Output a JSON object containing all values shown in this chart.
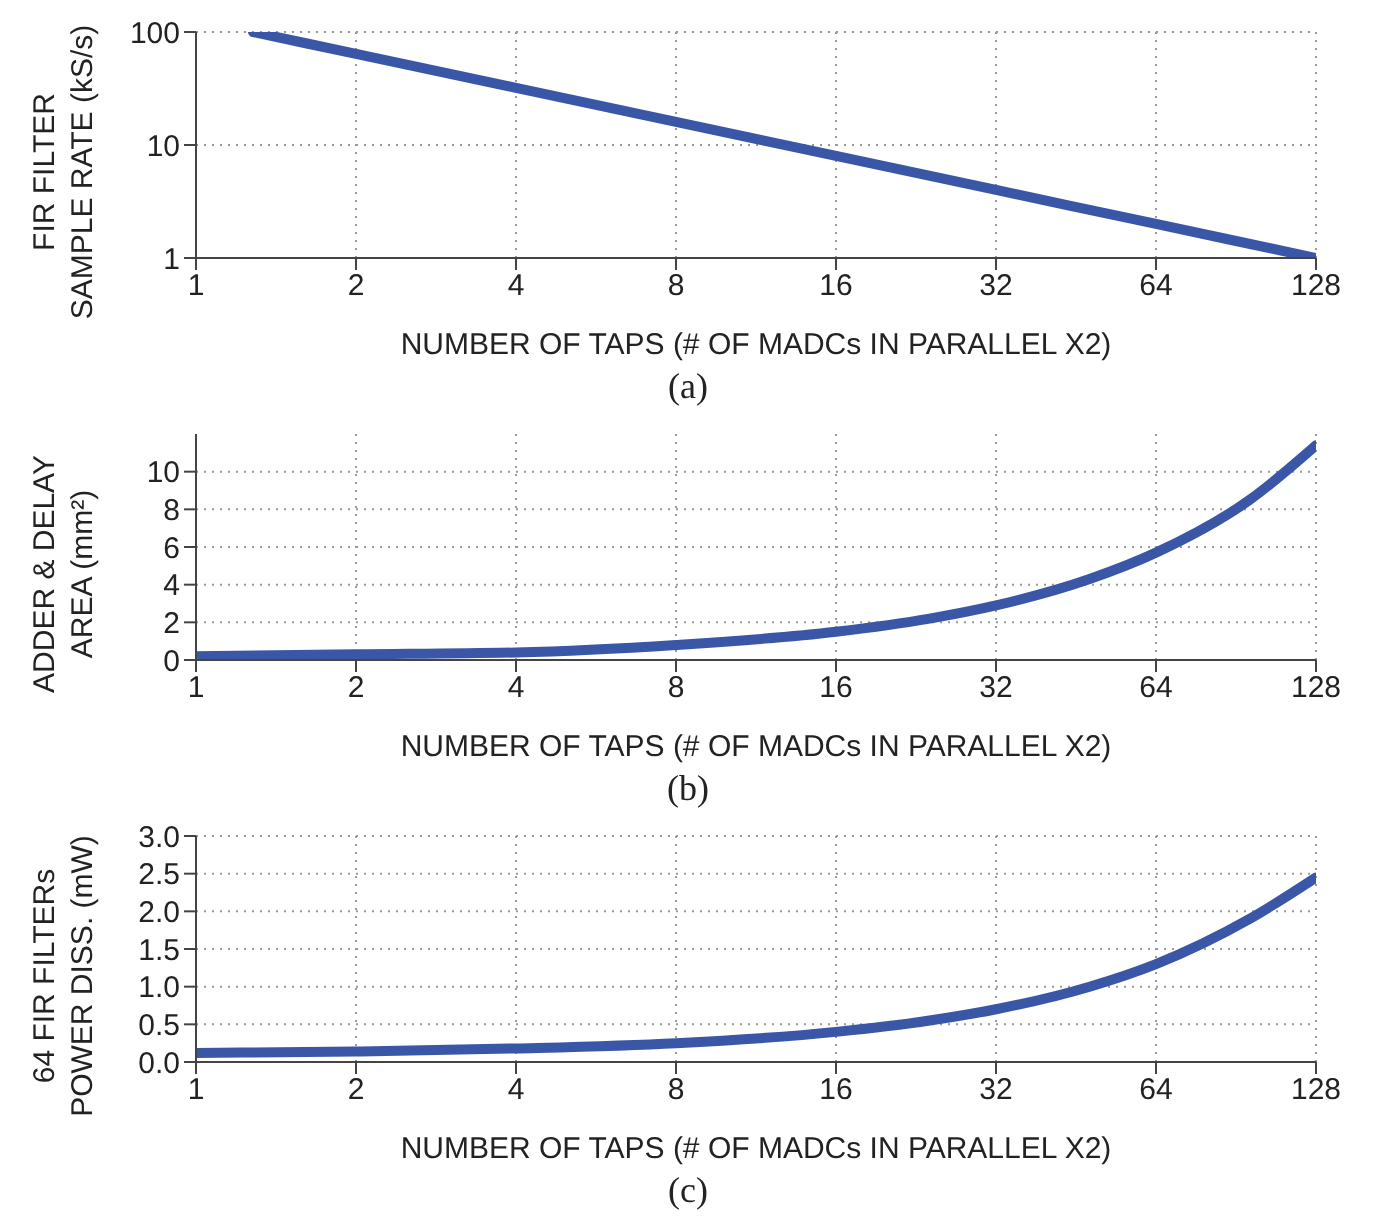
{
  "chart_data": [
    {
      "type": "line",
      "xlabel": "NUMBER OF TAPS (# OF MADCs IN PARALLEL X2)",
      "ylabel": "FIR FILTER\nSAMPLE RATE (kS/s)",
      "annotations": [
        "(a)"
      ],
      "log": "xy",
      "grid": true,
      "xlim": [
        1,
        128
      ],
      "xticks": [
        1,
        2,
        4,
        8,
        16,
        32,
        64,
        128
      ],
      "ylim": [
        1,
        100
      ],
      "yticks": [
        1,
        10,
        100
      ],
      "series": [
        {
          "color": "#3a56a6",
          "x": [
            1.28,
            2,
            4,
            8,
            16,
            32,
            64,
            128
          ],
          "values": [
            100,
            64,
            32,
            16,
            8,
            4,
            2,
            1
          ]
        }
      ]
    },
    {
      "type": "line",
      "xlabel": "NUMBER OF TAPS (# OF MADCs IN PARALLEL X2)",
      "ylabel": "ADDER & DELAY\nAREA (mm²)",
      "annotations": [
        "(b)"
      ],
      "log": "x",
      "grid": true,
      "xlim": [
        1,
        128
      ],
      "xticks": [
        1,
        2,
        4,
        8,
        16,
        32,
        64,
        128
      ],
      "ylim": [
        0,
        12
      ],
      "yticks": [
        0,
        2,
        4,
        6,
        8,
        10
      ],
      "series": [
        {
          "color": "#3a56a6",
          "x": [
            1,
            2,
            4,
            8,
            16,
            24,
            32,
            48,
            64,
            96,
            128
          ],
          "values": [
            0.2,
            0.3,
            0.4,
            0.8,
            1.5,
            2.2,
            2.9,
            4.3,
            5.7,
            8.5,
            11.4
          ]
        }
      ]
    },
    {
      "type": "line",
      "xlabel": "NUMBER OF TAPS (# OF MADCs IN PARALLEL X2)",
      "ylabel": "64 FIR FILTERs\nPOWER DISS. (mW)",
      "annotations": [
        "(c)"
      ],
      "log": "x",
      "grid": true,
      "xlim": [
        1,
        128
      ],
      "xticks": [
        1,
        2,
        4,
        8,
        16,
        32,
        64,
        128
      ],
      "ylim": [
        0,
        3
      ],
      "yticks": [
        {
          "value": 0,
          "label": "0.0"
        },
        0.5,
        {
          "value": 1,
          "label": "1.0"
        },
        1.5,
        {
          "value": 2,
          "label": "2.0"
        },
        2.5,
        {
          "value": 3,
          "label": "3.0"
        }
      ],
      "series": [
        {
          "color": "#3a56a6",
          "x": [
            1,
            2,
            4,
            8,
            16,
            24,
            32,
            48,
            64,
            96,
            128
          ],
          "values": [
            0.12,
            0.14,
            0.18,
            0.25,
            0.4,
            0.55,
            0.7,
            1.0,
            1.3,
            1.9,
            2.45
          ]
        }
      ]
    }
  ]
}
